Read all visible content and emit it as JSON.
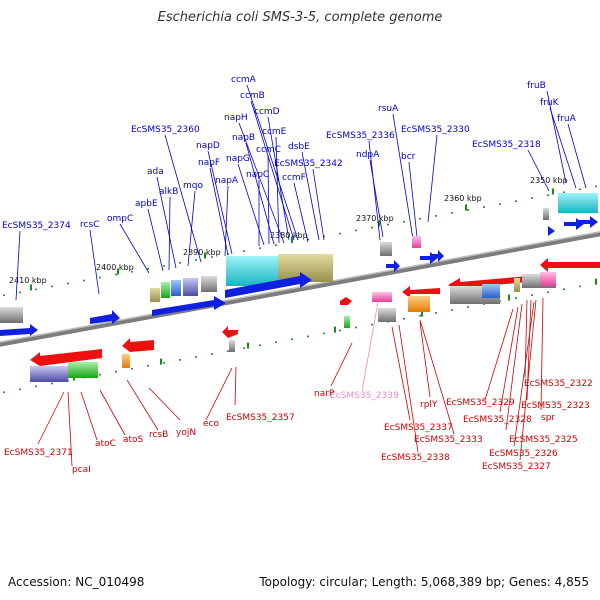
{
  "title": "Escherichia coli SMS-3-5, complete genome",
  "footer": {
    "accession": "Accession: NC_010498",
    "topology": "Topology: circular; Length: 5,068,389 bp; Genes: 4,855"
  },
  "scale_labels": [
    "2350 kbp",
    "2360 kbp",
    "2370 kbp",
    "2380 kbp",
    "2390 kbp",
    "2400 kbp",
    "2410 kbp"
  ],
  "genes_forward": [
    "fruB",
    "fruK",
    "fruA",
    "EcSMS35_2318",
    "rsuA",
    "EcSMS35_2330",
    "bcr",
    "EcSMS35_2336",
    "ndpA",
    "ccmA",
    "ccmB",
    "ccmD",
    "napH",
    "ccmE",
    "napB",
    "dsbE",
    "ccmC",
    "napG",
    "EcSMS35_2342",
    "ccmF",
    "napC",
    "EcSMS35_2360",
    "napD",
    "napF",
    "napA",
    "ada",
    "mqo",
    "alkB",
    "apbE",
    "ompC",
    "rcsC",
    "EcSMS35_2374"
  ],
  "genes_reverse": [
    "EcSMS35_2322",
    "EcSMS35_2323",
    "spr",
    "EcSMS35_2329",
    "EcSMS35_2328",
    "EcSMS35_2325",
    "EcSMS35_2326",
    "EcSMS35_2327",
    "rplY",
    "EcSMS35_2337",
    "EcSMS35_2333",
    "EcSMS35_2338",
    "EcSMS35_2339",
    "narP",
    "EcSMS35_2357",
    "eco",
    "yojN",
    "rcsB",
    "atoS",
    "atoC",
    "EcSMS35_2371",
    "pcaI"
  ],
  "colors": {
    "forward_label": "#0000cc",
    "reverse_label": "#cc0000",
    "pseudo_label": "#ee88cc",
    "genome_line": "#7d7d7d",
    "tick": "#1a8a1a"
  }
}
